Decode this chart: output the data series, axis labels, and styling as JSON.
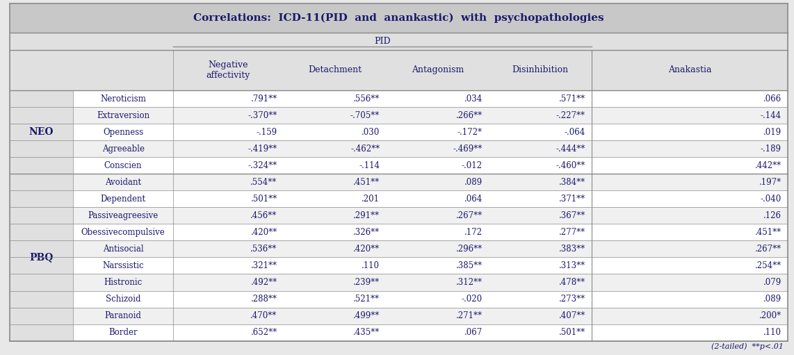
{
  "title": "Correlations:  ICD-11(PID  and  anankastic)  with  psychopathologies",
  "pid_label": "PID",
  "col_headers": [
    "Negative\naffectivity",
    "Detachment",
    "Antagonism",
    "Disinhibition",
    "Anakastia"
  ],
  "row_labels": [
    "Neroticism",
    "Extraversion",
    "Openness",
    "Agreeable",
    "Conscien",
    "Avoidant",
    "Dependent",
    "Passiveagreesive",
    "Obessivecompulsive",
    "Antisocial",
    "Narssistic",
    "Histronic",
    "Schizoid",
    "Paranoid",
    "Border"
  ],
  "data": [
    [
      ".791**",
      ".556**",
      ".034",
      ".571**",
      ".066"
    ],
    [
      "-.370**",
      "-.705**",
      ".266**",
      "-.227**",
      "-.144"
    ],
    [
      "-.159",
      ".030",
      "-.172*",
      "-.064",
      ".019"
    ],
    [
      "-.419**",
      "-.462**",
      "-.469**",
      "-.444**",
      "-.189"
    ],
    [
      "-.324**",
      "-.114",
      "-.012",
      "-.460**",
      ".442**"
    ],
    [
      ".554**",
      ".451**",
      ".089",
      ".384**",
      ".197*"
    ],
    [
      ".501**",
      ".201",
      ".064",
      ".371**",
      "-.040"
    ],
    [
      ".456**",
      ".291**",
      ".267**",
      ".367**",
      ".126"
    ],
    [
      ".420**",
      ".326**",
      ".172",
      ".277**",
      ".451**"
    ],
    [
      ".536**",
      ".420**",
      ".296**",
      ".383**",
      ".267**"
    ],
    [
      ".321**",
      ".110",
      ".385**",
      ".313**",
      ".254**"
    ],
    [
      ".492**",
      ".239**",
      ".312**",
      ".478**",
      ".079"
    ],
    [
      ".288**",
      ".521**",
      "-.020",
      ".273**",
      ".089"
    ],
    [
      ".470**",
      ".499**",
      ".271**",
      ".407**",
      ".200*"
    ],
    [
      ".652**",
      ".435**",
      ".067",
      ".501**",
      ".110"
    ]
  ],
  "footer": "(2-tailed)  **p<.01",
  "bg_page": "#e8e8e8",
  "bg_title": "#c8c8c8",
  "bg_header": "#e0e0e0",
  "bg_row_white": "#ffffff",
  "bg_row_gray": "#f0f0f0",
  "border_color": "#888888",
  "text_color": "#1a1a6e",
  "title_fontsize": 11,
  "header_fontsize": 9,
  "cell_fontsize": 8.5,
  "group_label_fontsize": 10
}
